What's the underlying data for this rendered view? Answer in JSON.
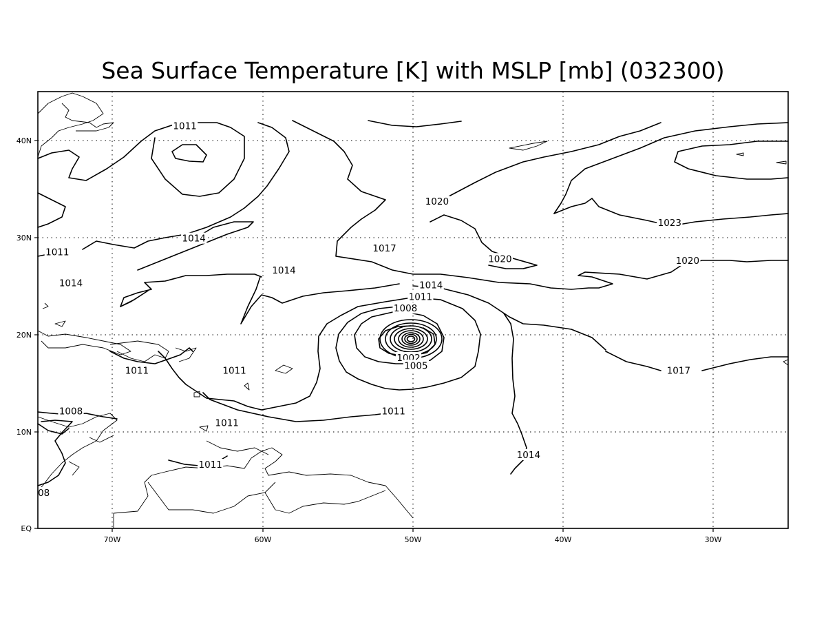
{
  "title": "Sea Surface Temperature [K] with MSLP [mb] (032300)",
  "map": {
    "lon_range": [
      -75,
      -25
    ],
    "lat_range": [
      0,
      45
    ],
    "lon_ticks": [
      {
        "lon": -70,
        "label": "70W"
      },
      {
        "lon": -60,
        "label": "60W"
      },
      {
        "lon": -50,
        "label": "50W"
      },
      {
        "lon": -40,
        "label": "40W"
      },
      {
        "lon": -30,
        "label": "30W"
      }
    ],
    "lat_ticks": [
      {
        "lat": 0,
        "label": "EQ"
      },
      {
        "lat": 10,
        "label": "10N"
      },
      {
        "lat": 20,
        "label": "20N"
      },
      {
        "lat": 30,
        "label": "30N"
      },
      {
        "lat": 40,
        "label": "40N"
      }
    ],
    "grid": "dotted",
    "storm_center": {
      "lon": -50.2,
      "lat": 19.6
    }
  },
  "contour_labels": [
    {
      "text": "1011",
      "lon": -65.2,
      "lat": 41.5
    },
    {
      "text": "1014",
      "lon": -64.6,
      "lat": 29.9
    },
    {
      "text": "1011",
      "lon": -73.7,
      "lat": 28.5
    },
    {
      "text": "1014",
      "lon": -58.6,
      "lat": 26.6
    },
    {
      "text": "1014",
      "lon": -72.8,
      "lat": 25.3
    },
    {
      "text": "1017",
      "lon": -51.9,
      "lat": 28.9
    },
    {
      "text": "1020",
      "lon": -48.4,
      "lat": 33.7
    },
    {
      "text": "1023",
      "lon": -32.9,
      "lat": 31.5
    },
    {
      "text": "1020",
      "lon": -44.2,
      "lat": 27.8
    },
    {
      "text": "1020",
      "lon": -31.7,
      "lat": 27.6
    },
    {
      "text": "1014",
      "lon": -48.8,
      "lat": 25.1
    },
    {
      "text": "1011",
      "lon": -49.5,
      "lat": 23.9
    },
    {
      "text": "1008",
      "lon": -50.5,
      "lat": 22.7
    },
    {
      "text": "1002",
      "lon": -50.3,
      "lat": 17.6
    },
    {
      "text": "1005",
      "lon": -49.8,
      "lat": 16.8
    },
    {
      "text": "1011",
      "lon": -68.4,
      "lat": 16.3
    },
    {
      "text": "1011",
      "lon": -61.9,
      "lat": 16.3
    },
    {
      "text": "1017",
      "lon": -32.3,
      "lat": 16.3
    },
    {
      "text": "1008",
      "lon": -72.8,
      "lat": 12.1
    },
    {
      "text": "1011",
      "lon": -62.4,
      "lat": 10.9
    },
    {
      "text": "1011",
      "lon": -51.3,
      "lat": 12.1
    },
    {
      "text": "1011",
      "lon": -63.5,
      "lat": 6.6
    },
    {
      "text": "1014",
      "lon": -42.3,
      "lat": 7.6
    },
    {
      "text": "08",
      "lon": -74.6,
      "lat": 3.7
    }
  ]
}
